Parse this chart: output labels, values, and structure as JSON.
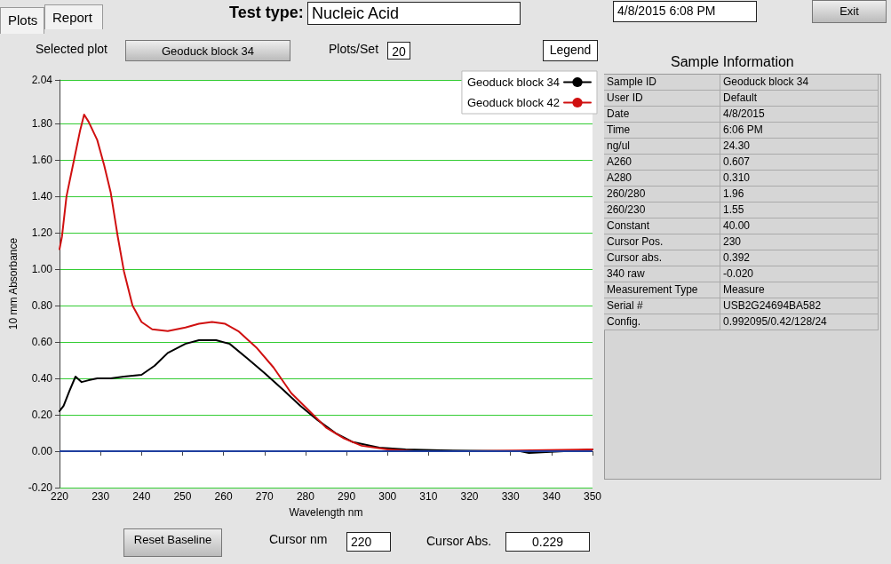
{
  "chart_data": {
    "type": "line",
    "xlabel": "Wavelength nm",
    "ylabel": "10 mm Absorbance",
    "xlim": [
      220,
      350
    ],
    "xticks": [
      220,
      230,
      240,
      250,
      260,
      270,
      280,
      290,
      300,
      310,
      320,
      330,
      340,
      350
    ],
    "ylim": [
      -0.2,
      2.04
    ],
    "yticks": [
      {
        "value": -0.2,
        "label": "-0.20"
      },
      {
        "value": 0,
        "label": "0.00"
      },
      {
        "value": 0.2,
        "label": "0.20"
      },
      {
        "value": 0.4,
        "label": "0.40"
      },
      {
        "value": 0.6,
        "label": "0.60"
      },
      {
        "value": 0.8,
        "label": "0.80"
      },
      {
        "value": 1.0,
        "label": "1.00"
      },
      {
        "value": 1.2,
        "label": "1.20"
      },
      {
        "value": 1.4,
        "label": "1.40"
      },
      {
        "value": 1.6,
        "label": "1.60"
      },
      {
        "value": 1.8,
        "label": "1.80"
      },
      {
        "value": 2.04,
        "label": "2.04"
      }
    ],
    "grid": "y",
    "legend": "top right",
    "marker": "none",
    "line_style": "solid",
    "ref_lines": [
      {
        "axis": "y",
        "value": 0,
        "color": "#1f3f9f"
      }
    ],
    "series": [
      {
        "name": "Geoduck block 34",
        "color": "#000000",
        "x": [
          220,
          221,
          222.4,
          223.9,
          225.4,
          227.1,
          229.2,
          232.5,
          235.7,
          240,
          243.2,
          246.4,
          250.7,
          254,
          258.2,
          261.5,
          265.8,
          270,
          274.4,
          278.7,
          283,
          287.3,
          291.6,
          298,
          304.4,
          313,
          332.4,
          334.5,
          343,
          350
        ],
        "values": [
          0.22,
          0.25,
          0.33,
          0.41,
          0.38,
          0.39,
          0.4,
          0.4,
          0.41,
          0.42,
          0.47,
          0.54,
          0.59,
          0.61,
          0.61,
          0.59,
          0.51,
          0.43,
          0.34,
          0.25,
          0.17,
          0.1,
          0.05,
          0.02,
          0.01,
          0.005,
          0,
          -0.01,
          0,
          0.01
        ]
      },
      {
        "name": "Geoduck block 42",
        "color": "#d01010",
        "x": [
          220,
          220.6,
          221.7,
          222.8,
          223.9,
          225,
          226,
          227.1,
          229.2,
          230.9,
          232.5,
          234.2,
          235.7,
          237.8,
          240,
          242.6,
          246.4,
          250.7,
          254,
          257.2,
          260.4,
          263.6,
          268,
          272.2,
          276.5,
          281,
          285,
          289.4,
          293.7,
          300,
          306.6,
          320,
          350
        ],
        "values": [
          1.11,
          1.18,
          1.4,
          1.52,
          1.64,
          1.76,
          1.85,
          1.81,
          1.71,
          1.57,
          1.42,
          1.18,
          0.99,
          0.8,
          0.71,
          0.67,
          0.66,
          0.68,
          0.7,
          0.71,
          0.7,
          0.66,
          0.57,
          0.46,
          0.32,
          0.22,
          0.13,
          0.07,
          0.03,
          0.01,
          0,
          0,
          0.01
        ]
      }
    ],
    "annotations": [
      "Plots",
      "Report",
      "Test type:",
      "Nucleic Acid",
      "4/8/2015  6:08 PM",
      "Exit",
      "Selected plot",
      "Geoduck block 34",
      "Plots/Set",
      "20",
      "Legend",
      "Sample Information",
      "Sample ID",
      "Geoduck block 34",
      "User ID",
      "Default",
      "Date",
      "4/8/2015",
      "Time",
      "6:06 PM",
      "ng/ul",
      "24.30",
      "A260",
      "0.607",
      "A280",
      "0.310",
      "260/280",
      "1.96",
      "260/230",
      "1.55",
      "Constant",
      "40.00",
      "Cursor Pos.",
      "230",
      "Cursor abs.",
      "0.392",
      "340 raw",
      "-0.020",
      "Measurement Type",
      "Measure",
      "Serial #",
      "USB2G24694BA582",
      "Config.",
      "0.992095/0.42/128/24",
      "Reset Baseline",
      "Cursor nm",
      "220",
      "Cursor Abs.",
      "0.229"
    ]
  }
}
